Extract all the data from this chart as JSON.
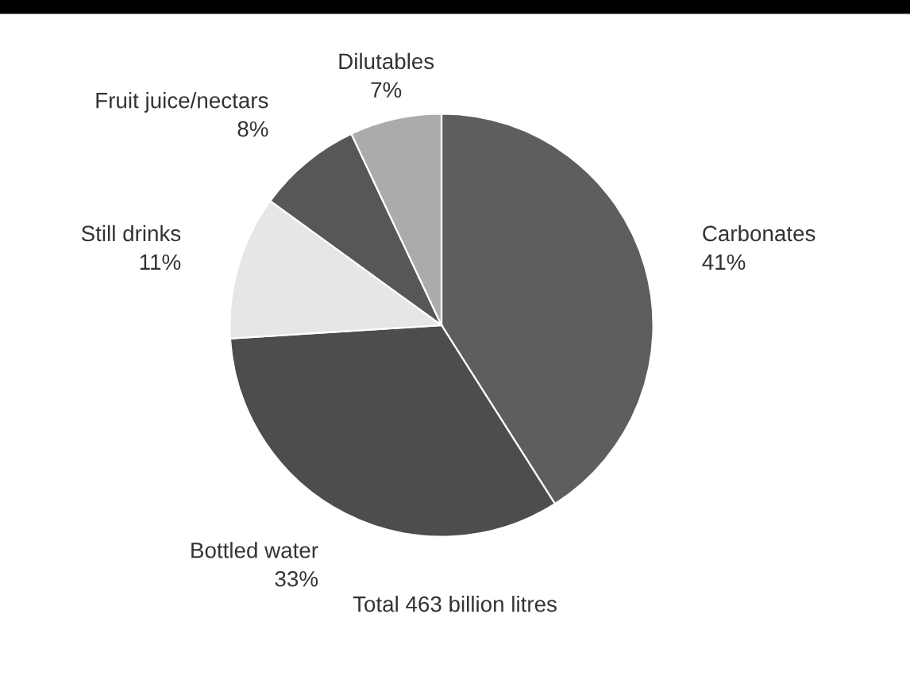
{
  "chart_data": {
    "type": "pie",
    "categories": [
      "Carbonates",
      "Bottled water",
      "Still drinks",
      "Fruit juice/nectars",
      "Dilutables"
    ],
    "values": [
      41,
      33,
      11,
      8,
      7
    ],
    "value_labels": [
      "41%",
      "33%",
      "11%",
      "8%",
      "7%"
    ],
    "colors": [
      "#5e5e5e",
      "#4d4d4d",
      "#e6e6e6",
      "#575757",
      "#ababab"
    ],
    "annotations": [
      "Total 463 billion litres"
    ]
  }
}
